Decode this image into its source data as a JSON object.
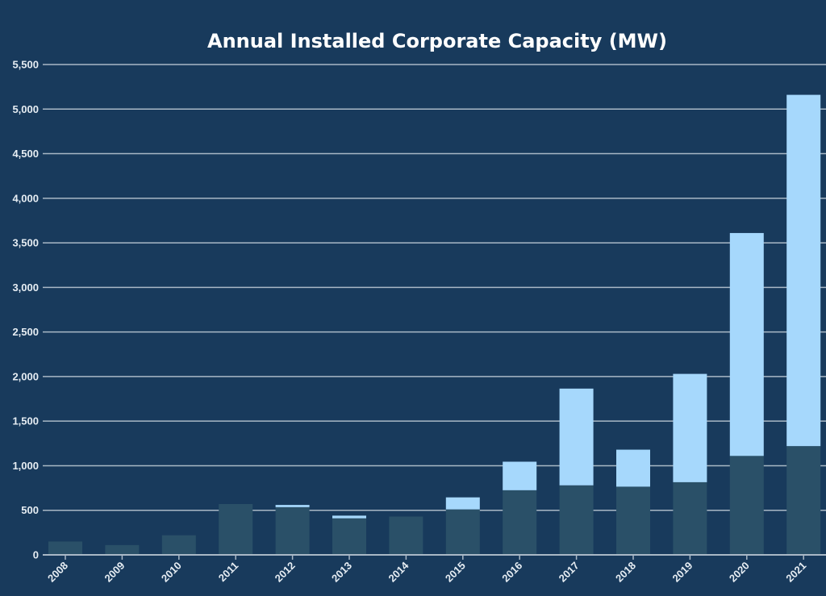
{
  "chart_data": {
    "type": "bar",
    "stacked": true,
    "title": "Annual Installed Corporate Capacity (MW)",
    "xlabel": "",
    "ylabel": "",
    "ylim": [
      0,
      5500
    ],
    "yticks": [
      0,
      500,
      1000,
      1500,
      2000,
      2500,
      3000,
      3500,
      4000,
      4500,
      5000,
      5500
    ],
    "ytick_labels": [
      "0",
      "500",
      "1,000",
      "1,500",
      "2,000",
      "2,500",
      "3,000",
      "3,500",
      "4,000",
      "4,500",
      "5,000",
      "5,500"
    ],
    "grid": true,
    "legend": "none",
    "categories": [
      "2008",
      "2009",
      "2010",
      "2011",
      "2012",
      "2013",
      "2014",
      "2015",
      "2016",
      "2017",
      "2018",
      "2019",
      "2020",
      "2021"
    ],
    "series": [
      {
        "values": [
          150,
          110,
          220,
          570,
          535,
          410,
          430,
          510,
          725,
          780,
          765,
          815,
          1110,
          1220
        ],
        "color": "#2a5068"
      },
      {
        "values": [
          0,
          0,
          0,
          0,
          25,
          30,
          0,
          135,
          320,
          1085,
          415,
          1215,
          2500,
          3940
        ],
        "color": "#a6d8fc"
      }
    ],
    "colors": {
      "background": "#183a5c",
      "grid": "#a9b8c6",
      "text": "#e6edf3"
    }
  }
}
